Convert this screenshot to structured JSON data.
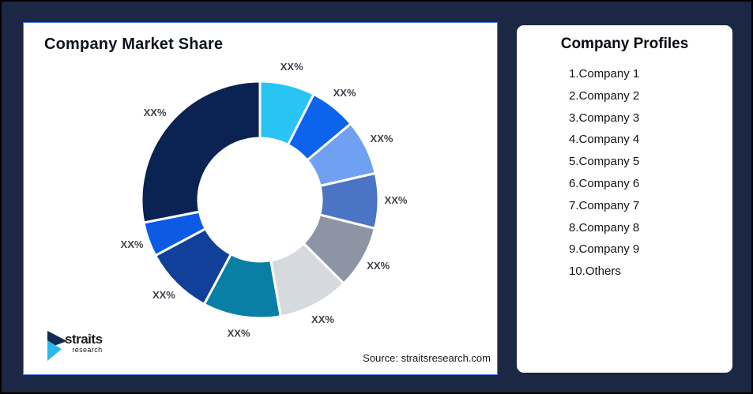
{
  "page": {
    "background": "#1B2743",
    "outer_border_color": "#000000",
    "card_border_color": "#4D7AE8"
  },
  "left_card": {
    "title": "Company Market Share",
    "source": "Source: straitsresearch.com",
    "logo": {
      "brand": "straits",
      "sub": "research",
      "icon_navy": "#132B54",
      "icon_cyan": "#29B8EA"
    }
  },
  "right_card": {
    "title": "Company Profiles",
    "items": [
      "1.Company 1",
      "2.Company 2",
      "3.Company 3",
      "4.Company 4",
      "5.Company 5",
      "6.Company 6",
      "7.Company 7",
      "8.Company 8",
      "9.Company 9",
      "10.Others"
    ]
  },
  "chart_data": {
    "type": "pie",
    "subtype": "donut",
    "title": "Company Market Share",
    "labels": [
      "Company 1",
      "Company 2",
      "Company 3",
      "Company 4",
      "Company 5",
      "Company 6",
      "Company 7",
      "Company 8",
      "Company 9",
      "Others"
    ],
    "values": [
      7.5,
      6.4,
      7.5,
      7.5,
      8.6,
      9.7,
      10.6,
      9.4,
      4.7,
      28.1
    ],
    "value_labels": [
      "XX%",
      "XX%",
      "XX%",
      "XX%",
      "XX%",
      "XX%",
      "XX%",
      "XX%",
      "XX%",
      "XX%"
    ],
    "colors": [
      "#28C4F4",
      "#0C63EC",
      "#6FA0F2",
      "#4C74C4",
      "#8D95A4",
      "#D6D9DE",
      "#0A7FA5",
      "#11409B",
      "#0D5BE5",
      "#0B2353"
    ],
    "start_angle_deg": 0,
    "direction": "clockwise",
    "inner_radius_ratio": 0.52,
    "gap_stroke_color": "#FFFFFF",
    "label_color": "#3F444C",
    "legend": "none",
    "note": "displayed percentages are XX% placeholders; values are arc-span estimates in percent"
  }
}
